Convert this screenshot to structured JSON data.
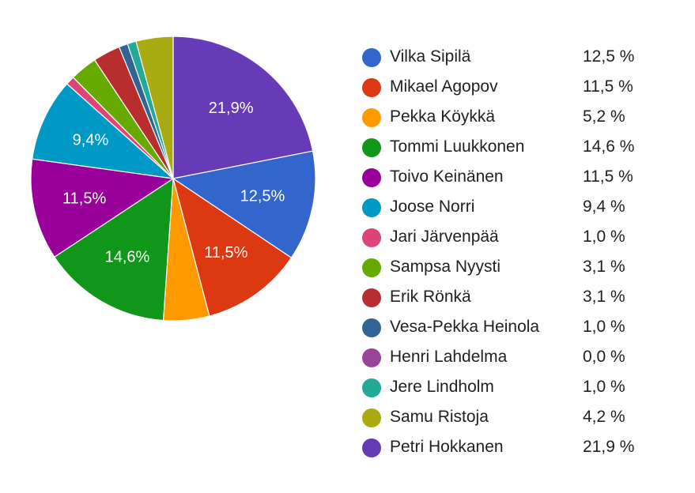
{
  "chart_data": {
    "type": "pie",
    "start_angle": "top",
    "direction": "clockwise",
    "legend_position": "right",
    "slices": [
      {
        "label": "Petri Hokkanen",
        "value": 21.9,
        "legend_value": "21,9 %",
        "slice_label": "21,9%",
        "color": "#673ab7"
      },
      {
        "label": "Vilka Sipilä",
        "value": 12.5,
        "legend_value": "12,5 %",
        "slice_label": "12,5%",
        "color": "#3366cc"
      },
      {
        "label": "Mikael Agopov",
        "value": 11.5,
        "legend_value": "11,5 %",
        "slice_label": "11,5%",
        "color": "#dc3912"
      },
      {
        "label": "Pekka Köykkä",
        "value": 5.2,
        "legend_value": "5,2 %",
        "slice_label": "",
        "color": "#ff9900"
      },
      {
        "label": "Tommi Luukkonen",
        "value": 14.6,
        "legend_value": "14,6 %",
        "slice_label": "14,6%",
        "color": "#109618"
      },
      {
        "label": "Toivo Keinänen",
        "value": 11.5,
        "legend_value": "11,5 %",
        "slice_label": "11,5%",
        "color": "#990099"
      },
      {
        "label": "Joose Norri",
        "value": 9.4,
        "legend_value": "9,4 %",
        "slice_label": "9,4%",
        "color": "#0099c6"
      },
      {
        "label": "Jari Järvenpää",
        "value": 1.0,
        "legend_value": "1,0 %",
        "slice_label": "",
        "color": "#dd4477"
      },
      {
        "label": "Sampsa Nyysti",
        "value": 3.1,
        "legend_value": "3,1 %",
        "slice_label": "",
        "color": "#66aa00"
      },
      {
        "label": "Erik Rönkä",
        "value": 3.1,
        "legend_value": "3,1 %",
        "slice_label": "",
        "color": "#b82e2e"
      },
      {
        "label": "Vesa-Pekka Heinola",
        "value": 1.0,
        "legend_value": "1,0 %",
        "slice_label": "",
        "color": "#316395"
      },
      {
        "label": "Henri Lahdelma",
        "value": 0.0,
        "legend_value": "0,0 %",
        "slice_label": "",
        "color": "#994499"
      },
      {
        "label": "Jere Lindholm",
        "value": 1.0,
        "legend_value": "1,0 %",
        "slice_label": "",
        "color": "#22aa99"
      },
      {
        "label": "Samu Ristoja",
        "value": 4.2,
        "legend_value": "4,2 %",
        "slice_label": "",
        "color": "#aaaa11"
      }
    ],
    "legend_order": [
      "Vilka Sipilä",
      "Mikael Agopov",
      "Pekka Köykkä",
      "Tommi Luukkonen",
      "Toivo Keinänen",
      "Joose Norri",
      "Jari Järvenpää",
      "Sampsa Nyysti",
      "Erik Rönkä",
      "Vesa-Pekka Heinola",
      "Henri Lahdelma",
      "Jere Lindholm",
      "Samu Ristoja",
      "Petri Hokkanen"
    ]
  }
}
